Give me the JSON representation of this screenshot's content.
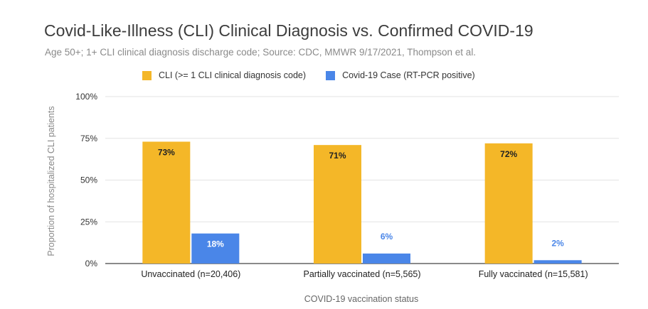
{
  "chart_data": {
    "type": "bar",
    "title": "Covid-Like-Illness (CLI) Clinical Diagnosis vs. Confirmed COVID-19",
    "subtitle": "Age 50+; 1+ CLI clinical diagnosis discharge code; Source: CDC, MMWR 9/17/2021, Thompson et al.",
    "xlabel": "COVID-19 vaccination status",
    "ylabel": "Proportion of hospitalized CLI patients",
    "categories": [
      "Unvaccinated (n=20,406)",
      "Partially vaccinated (n=5,565)",
      "Fully vaccinated (n=15,581)"
    ],
    "series": [
      {
        "name": "CLI (>= 1 CLI clinical diagnosis code)",
        "color": "#F4B728",
        "values": [
          73,
          71,
          72
        ],
        "labels": [
          "73%",
          "71%",
          "72%"
        ],
        "label_color": "#222222"
      },
      {
        "name": "Covid-19 Case (RT-PCR positive)",
        "color": "#4A86E8",
        "values": [
          18,
          6,
          2
        ],
        "labels": [
          "18%",
          "6%",
          "2%"
        ],
        "label_color": "#4A86E8"
      }
    ],
    "ylim": [
      0,
      100
    ],
    "yticks": [
      0,
      25,
      50,
      75,
      100
    ],
    "ytick_labels": [
      "0%",
      "25%",
      "50%",
      "75%",
      "100%"
    ],
    "grid": true,
    "legend_position": "top"
  }
}
